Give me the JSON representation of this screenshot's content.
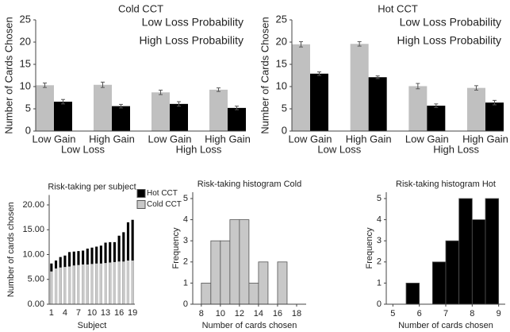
{
  "chart_data": [
    {
      "type": "bar",
      "barmode": "group",
      "title": "Cold CCT",
      "y_label": "Number of Cards Chosen",
      "categories": [
        "Low Gain",
        "High Gain",
        "Low Gain",
        "High Gain"
      ],
      "group_labels": [
        "Low Loss",
        "High Loss"
      ],
      "series": [
        {
          "name": "Low Loss Probability",
          "color": "#c0c0c0",
          "values": [
            10.3,
            10.4,
            8.7,
            9.3
          ],
          "errors": [
            0.5,
            0.6,
            0.5,
            0.4
          ]
        },
        {
          "name": "High Loss Probability",
          "color": "#000000",
          "values": [
            6.6,
            5.6,
            6.1,
            5.2
          ],
          "errors": [
            0.5,
            0.4,
            0.5,
            0.4
          ]
        }
      ],
      "ylim": [
        0,
        25
      ],
      "yticks": [
        0,
        5,
        10,
        15,
        20,
        25
      ],
      "legend": "upper right"
    },
    {
      "type": "bar",
      "barmode": "group",
      "title": "Hot CCT",
      "y_label": "Number of Cards Chosen",
      "categories": [
        "Low Gain",
        "High Gain",
        "Low Gain",
        "High Gain"
      ],
      "group_labels": [
        "Low Loss",
        "High Loss"
      ],
      "series": [
        {
          "name": "Low Loss Probability",
          "color": "#c0c0c0",
          "values": [
            19.5,
            19.6,
            10.1,
            9.7
          ],
          "errors": [
            0.6,
            0.5,
            0.6,
            0.5
          ]
        },
        {
          "name": "High Loss Probability",
          "color": "#000000",
          "values": [
            12.9,
            12.1,
            5.7,
            6.4
          ],
          "errors": [
            0.4,
            0.3,
            0.4,
            0.5
          ]
        }
      ],
      "ylim": [
        0,
        25
      ],
      "yticks": [
        0,
        5,
        10,
        15,
        20,
        25
      ],
      "legend": "upper right"
    },
    {
      "type": "bar",
      "barmode": "overlay",
      "title": "Risk-taking per subject",
      "x_label": "Subject",
      "y_label": "Number of cards chosen",
      "categories": [
        "1",
        null,
        null,
        "4",
        null,
        null,
        "7",
        null,
        null,
        "10",
        null,
        null,
        "13",
        null,
        null,
        "16",
        null,
        null,
        "19"
      ],
      "series": [
        {
          "name": "Hot CCT",
          "color": "#000000",
          "values": [
            8.2,
            8.8,
            9.5,
            9.8,
            10.5,
            10.6,
            10.7,
            10.8,
            11.2,
            11.4,
            11.6,
            11.8,
            12.4,
            12.5,
            12.5,
            13.8,
            14.5,
            16.5,
            17.0
          ]
        },
        {
          "name": "Cold CCT",
          "color": "#c8c8c8",
          "values": [
            6.6,
            7.2,
            7.4,
            7.5,
            7.6,
            7.8,
            7.9,
            8.0,
            8.0,
            8.1,
            8.2,
            8.2,
            8.3,
            8.4,
            8.5,
            8.6,
            8.6,
            8.8,
            8.8
          ]
        }
      ],
      "ylim": [
        0,
        22
      ],
      "yticks": [
        {
          "value": 0,
          "label": "0.00"
        },
        {
          "value": 5,
          "label": "5.00"
        },
        {
          "value": 10,
          "label": "10.00"
        },
        {
          "value": 15,
          "label": "15.00"
        },
        {
          "value": 20,
          "label": "20.00"
        }
      ],
      "legend": "outside upper right"
    },
    {
      "type": "histogram",
      "title": "Risk-taking histogram Cold",
      "x_label": "Number of cards chosen",
      "y_label": "Frequency",
      "color": "#c8c8c8",
      "bins": [
        8,
        9,
        10,
        11,
        12,
        13,
        14,
        15,
        16,
        17
      ],
      "counts": [
        1,
        3,
        3,
        4,
        4,
        1,
        2,
        0,
        2
      ],
      "xlim": [
        7.1,
        19
      ],
      "xticks": [
        8,
        10,
        12,
        14,
        16,
        18
      ],
      "ylim": [
        0,
        5.3
      ],
      "yticks": [
        0,
        1,
        2,
        3,
        4,
        5
      ]
    },
    {
      "type": "histogram",
      "title": "Risk-taking histogram Hot",
      "x_label": "Number of cards chosen",
      "y_label": "Frequency",
      "color": "#000000",
      "bins": [
        5.5,
        6,
        6.5,
        7,
        7.5,
        8,
        8.5,
        9
      ],
      "counts": [
        1,
        0,
        2,
        3,
        5,
        4,
        5
      ],
      "xlim": [
        4.75,
        9.25
      ],
      "xticks": [
        5,
        6,
        7,
        8,
        9
      ],
      "ylim": [
        0,
        5.3
      ],
      "yticks": [
        0,
        1,
        2,
        3,
        4,
        5
      ]
    }
  ]
}
